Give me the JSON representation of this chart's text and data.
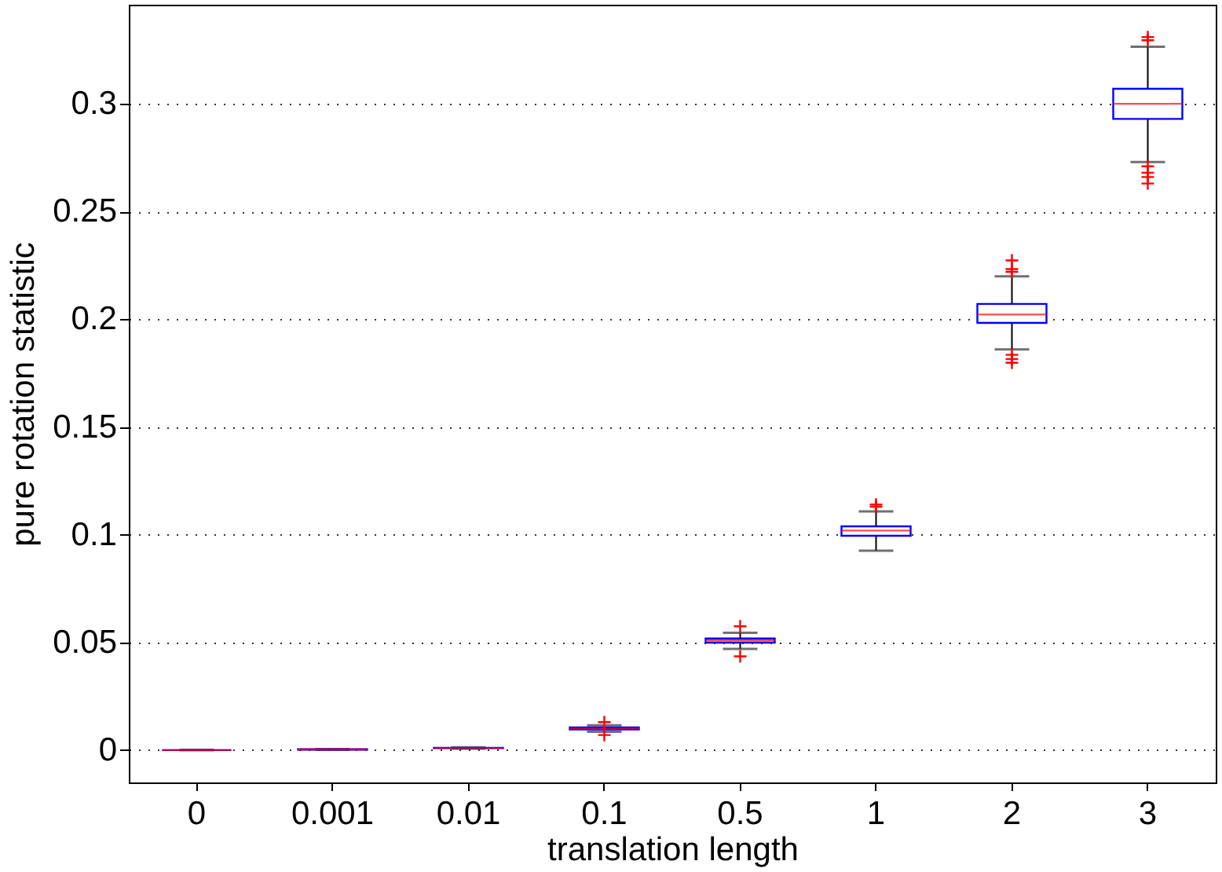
{
  "chart_data": {
    "type": "box",
    "xlabel": "translation length",
    "ylabel": "pure rotation statistic",
    "categories": [
      "0",
      "0.001",
      "0.01",
      "0.1",
      "0.5",
      "1",
      "2",
      "3"
    ],
    "ylim": [
      -0.015,
      0.346
    ],
    "yticks": [
      0,
      0.05,
      0.1,
      0.15,
      0.2,
      0.25,
      0.3
    ],
    "grid": "y",
    "boxes": [
      {
        "low": 0,
        "q1": 0,
        "median": 0,
        "q3": 0,
        "high": 0
      },
      {
        "low": 0.0001,
        "q1": 0.0002,
        "median": 0.0003,
        "q3": 0.0004,
        "high": 0.0005
      },
      {
        "low": 0.0007,
        "q1": 0.0009,
        "median": 0.001,
        "q3": 0.0011,
        "high": 0.0013
      },
      {
        "low": 0.0085,
        "q1": 0.0096,
        "median": 0.01,
        "q3": 0.0105,
        "high": 0.0115,
        "outliers": [
          0.013,
          0.007
        ]
      },
      {
        "low": 0.047,
        "q1": 0.0499,
        "median": 0.0509,
        "q3": 0.0518,
        "high": 0.0545,
        "outliers": [
          0.0575,
          0.0435
        ]
      },
      {
        "low": 0.0926,
        "q1": 0.0995,
        "median": 0.1019,
        "q3": 0.1039,
        "high": 0.1108,
        "outliers": [
          0.113,
          0.114
        ]
      },
      {
        "low": 0.186,
        "q1": 0.1983,
        "median": 0.2022,
        "q3": 0.2071,
        "high": 0.2199,
        "outliers": [
          0.2273,
          0.2233,
          0.222,
          0.1835,
          0.1815,
          0.1798
        ]
      },
      {
        "low": 0.273,
        "q1": 0.293,
        "median": 0.3,
        "q3": 0.307,
        "high": 0.3265,
        "outliers": [
          0.331,
          0.3295,
          0.271,
          0.268,
          0.266,
          0.263
        ]
      }
    ]
  }
}
